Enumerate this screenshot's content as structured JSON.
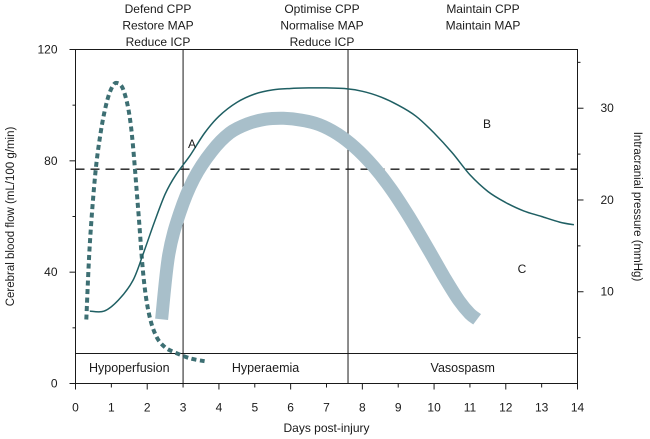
{
  "chart_data": {
    "type": "line",
    "xlabel": "Days post-injury",
    "ylabel_left": "Cerebral blood flow (mL/100 g/min)",
    "ylabel_right": "Intracranial pressure (mmHg)",
    "xlim": [
      0,
      14
    ],
    "ylim_left": [
      0,
      120
    ],
    "ylim_right": [
      0,
      36.4
    ],
    "x_ticks": [
      "0",
      "2",
      "4",
      "6",
      "8",
      "10",
      "12",
      "14"
    ],
    "x_ticks_minor": [
      "1",
      "3",
      "5",
      "7",
      "9",
      "11",
      "13"
    ],
    "y_left_ticks": [
      "0",
      "40",
      "80",
      "120"
    ],
    "y_right_ticks": [
      "10",
      "20",
      "30"
    ],
    "phase_headers": [
      [
        "Defend CPP",
        "Restore MAP",
        "Reduce ICP"
      ],
      [
        "Optimise CPP",
        "Normalise MAP",
        "Reduce ICP"
      ],
      [
        "Maintain CPP",
        "Maintain MAP"
      ]
    ],
    "phase_boundaries_days": [
      3.0,
      7.6
    ],
    "phases": [
      "Hypoperfusion",
      "Hyperaemia",
      "Vasospasm"
    ],
    "threshold_line": {
      "y": 77,
      "axis": "left",
      "style": "dashed"
    },
    "series": [
      {
        "name": "A",
        "label": "A",
        "axis": "left",
        "style": "dotted",
        "color": "#3d6f73",
        "x": [
          0.3,
          0.4,
          0.55,
          0.7,
          0.85,
          1.0,
          1.15,
          1.35,
          1.55,
          1.75,
          1.9,
          2.05,
          2.25,
          2.5,
          2.8,
          3.2,
          3.6
        ],
        "y": [
          23,
          50,
          75,
          90,
          100,
          106,
          108,
          105,
          92,
          62,
          38,
          25,
          17,
          13,
          11,
          9,
          8
        ]
      },
      {
        "name": "B",
        "label": "B",
        "axis": "left",
        "style": "solid",
        "color": "#1f5f63",
        "x": [
          0.4,
          0.8,
          1.2,
          1.6,
          1.9,
          2.2,
          2.5,
          2.8,
          3.2,
          3.6,
          4.0,
          4.5,
          5.0,
          5.5,
          6.0,
          6.5,
          7.0,
          7.5,
          8.0,
          8.5,
          9.0,
          9.5,
          10.0,
          10.5,
          11.0,
          11.5,
          12.0,
          12.5,
          13.0,
          13.5,
          13.9
        ],
        "y": [
          26,
          26,
          30,
          37,
          47,
          58,
          68,
          75,
          82,
          90,
          96,
          101,
          104,
          105.5,
          106,
          106.2,
          106.2,
          106,
          105,
          103,
          100,
          96,
          90,
          83,
          75,
          69,
          65,
          62,
          60,
          58,
          57
        ]
      },
      {
        "name": "C",
        "label": "C",
        "axis": "right",
        "style": "thick",
        "color": "#a8bfca",
        "x": [
          2.4,
          2.6,
          2.9,
          3.3,
          3.8,
          4.3,
          4.8,
          5.3,
          5.8,
          6.3,
          6.8,
          7.3,
          7.8,
          8.3,
          8.8,
          9.3,
          9.8,
          10.3,
          10.7,
          11.0,
          11.2
        ],
        "y": [
          7.0,
          14.0,
          18.5,
          22.3,
          25.3,
          27.3,
          28.3,
          28.8,
          28.9,
          28.7,
          28.2,
          27.2,
          25.7,
          23.7,
          21.2,
          18.2,
          14.9,
          11.5,
          9.0,
          7.6,
          7.0
        ]
      }
    ]
  }
}
